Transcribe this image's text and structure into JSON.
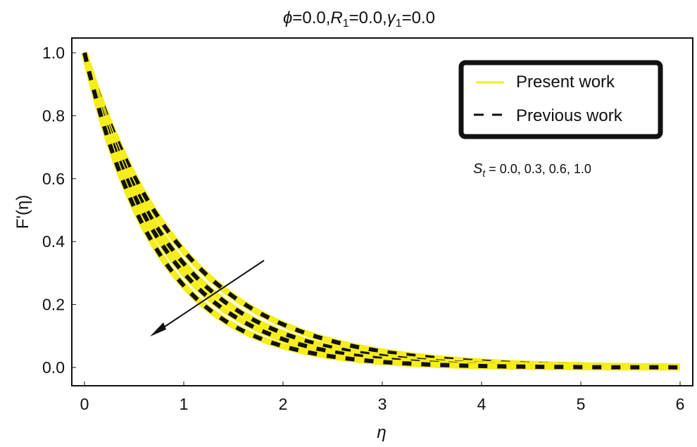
{
  "chart_data": {
    "type": "line",
    "title": "ϕ=0.0, R₁=0.0, γ₁=0.0",
    "title_parts": {
      "phi": "ϕ",
      "phi_val": "=0.0,",
      "R": "R",
      "R_sub": "1",
      "R_val": "=0.0,",
      "gamma": "γ",
      "gamma_sub": "1",
      "gamma_val": "=0.0"
    },
    "xlabel": "η",
    "ylabel": "F'(η)",
    "xlim": [
      0,
      6
    ],
    "ylim": [
      0,
      1.0
    ],
    "xticks": [
      "0",
      "1",
      "2",
      "3",
      "4",
      "5",
      "6"
    ],
    "yticks": [
      "0.0",
      "0.2",
      "0.4",
      "0.6",
      "0.8",
      "1.0"
    ],
    "grid": false,
    "legend": {
      "position": "upper right",
      "entries": [
        {
          "label": "Present work",
          "style": "solid",
          "color": "#f5ee1a"
        },
        {
          "label": "Previous work",
          "style": "dashed",
          "color": "#111111"
        }
      ]
    },
    "annotation": {
      "symbol": "S",
      "sub": "t",
      "text": " = 0.0, 0.3, 0.6, 1.0",
      "arrow": "decreasing direction as S_t increases"
    },
    "x": [
      0,
      0.5,
      1,
      1.5,
      2,
      2.5,
      3,
      3.5,
      4,
      4.5,
      5,
      5.5,
      6
    ],
    "series": [
      {
        "name": "S_t = 0.0",
        "values": [
          1.0,
          0.61,
          0.37,
          0.22,
          0.14,
          0.08,
          0.05,
          0.03,
          0.02,
          0.01,
          0.01,
          0.0,
          0.0
        ]
      },
      {
        "name": "S_t = 0.3",
        "values": [
          1.0,
          0.58,
          0.33,
          0.19,
          0.11,
          0.06,
          0.04,
          0.02,
          0.01,
          0.01,
          0.0,
          0.0,
          0.0
        ]
      },
      {
        "name": "S_t = 0.6",
        "values": [
          1.0,
          0.54,
          0.3,
          0.16,
          0.09,
          0.05,
          0.03,
          0.01,
          0.01,
          0.0,
          0.0,
          0.0,
          0.0
        ]
      },
      {
        "name": "S_t = 1.0",
        "values": [
          1.0,
          0.51,
          0.26,
          0.13,
          0.07,
          0.03,
          0.02,
          0.01,
          0.0,
          0.0,
          0.0,
          0.0,
          0.0
        ]
      }
    ],
    "colors": {
      "present": "#f5ee1a",
      "previous": "#111111",
      "frame": "#111111",
      "arrow": "#111111"
    }
  }
}
